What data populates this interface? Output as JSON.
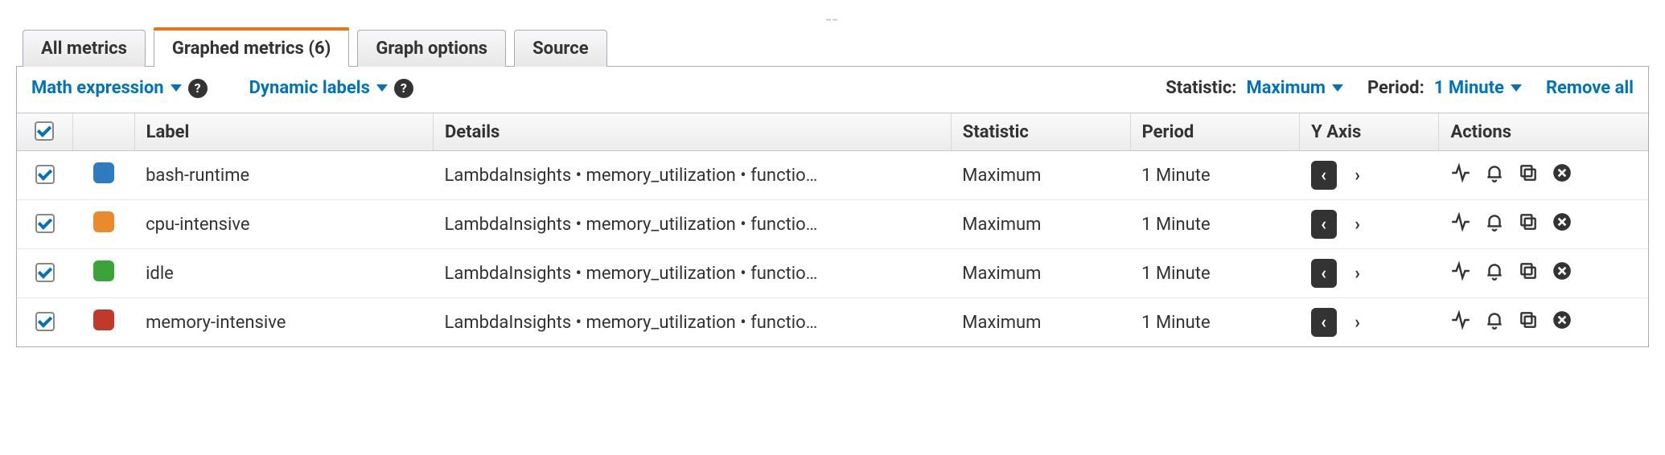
{
  "tabs": [
    {
      "label": "All metrics",
      "active": false
    },
    {
      "label": "Graphed metrics (6)",
      "active": true
    },
    {
      "label": "Graph options",
      "active": false
    },
    {
      "label": "Source",
      "active": false
    }
  ],
  "toolbar": {
    "math_expression": "Math expression",
    "dynamic_labels": "Dynamic labels",
    "statistic_label": "Statistic:",
    "statistic_value": "Maximum",
    "period_label": "Period:",
    "period_value": "1 Minute",
    "remove_all": "Remove all"
  },
  "columns": {
    "label": "Label",
    "details": "Details",
    "statistic": "Statistic",
    "period": "Period",
    "yaxis": "Y Axis",
    "actions": "Actions"
  },
  "rows": [
    {
      "checked": true,
      "color": "#2f7ac0",
      "label": "bash-runtime",
      "details": "LambdaInsights • memory_utilization • functio…",
      "statistic": "Maximum",
      "period": "1 Minute"
    },
    {
      "checked": true,
      "color": "#e98b2b",
      "label": "cpu-intensive",
      "details": "LambdaInsights • memory_utilization • functio…",
      "statistic": "Maximum",
      "period": "1 Minute"
    },
    {
      "checked": true,
      "color": "#3aa33a",
      "label": "idle",
      "details": "LambdaInsights • memory_utilization • functio…",
      "statistic": "Maximum",
      "period": "1 Minute"
    },
    {
      "checked": true,
      "color": "#c1392b",
      "label": "memory-intensive",
      "details": "LambdaInsights • memory_utilization • functio…",
      "statistic": "Maximum",
      "period": "1 Minute"
    }
  ],
  "colors": {
    "accent_orange": "#ec7211",
    "link_blue": "#0073bb"
  }
}
